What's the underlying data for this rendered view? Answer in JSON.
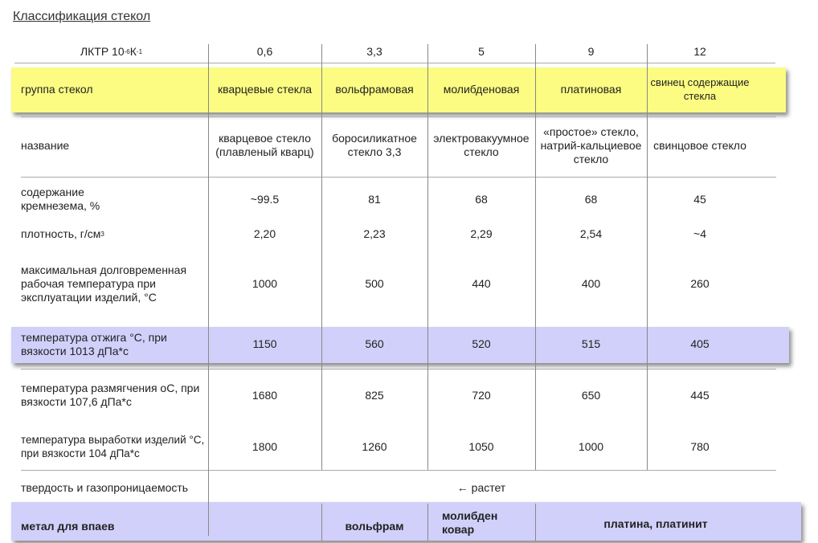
{
  "title": "Классификация стекол",
  "header": {
    "label": "ЛКТР 10",
    "exp1": "-6",
    "unit": " К",
    "exp2": "-1",
    "values": [
      "0,6",
      "3,3",
      "5",
      "9",
      "12"
    ]
  },
  "group": {
    "label": "группа стекол",
    "values": [
      "кварцевые стекла",
      "вольфрамовая",
      "молибденовая",
      "платиновая",
      "свинец содержащие стекла"
    ],
    "color": "#fcfc82"
  },
  "name": {
    "label": "название",
    "values": [
      "кварцевое стекло (плавленый кварц)",
      "боросиликатное стекло 3,3",
      "электровакуумное стекло",
      "«простое» стекло, натрий-кальциевое стекло",
      "свинцовое стекло"
    ]
  },
  "silica": {
    "label": "содержание кремнезема, %",
    "values": [
      "~99.5",
      "81",
      "68",
      "68",
      "45"
    ]
  },
  "density": {
    "label": "плотность, г/см",
    "exp": "3",
    "values": [
      "2,20",
      "2,23",
      "2,29",
      "2,54",
      "~4"
    ]
  },
  "maxtemp": {
    "label": "максимальная долговременная рабочая температура при эксплуатации изделий, °C",
    "values": [
      "1000",
      "500",
      "440",
      "400",
      "260"
    ]
  },
  "anneal": {
    "label": "температура отжига °C, при вязкости 1013 дПа*с",
    "values": [
      "1150",
      "560",
      "520",
      "515",
      "405"
    ],
    "color": "#d1d0fb"
  },
  "soften": {
    "label": "температура размягчения оС, при вязкости 107,6 дПа*с",
    "values": [
      "1680",
      "825",
      "720",
      "650",
      "445"
    ]
  },
  "working": {
    "label": "температура выработки изделий °C, при вязкости 104 дПа*с",
    "values": [
      "1800",
      "1260",
      "1050",
      "1000",
      "780"
    ]
  },
  "hardness": {
    "label": "твердость и газопроницаемость",
    "value": "← растет"
  },
  "metal": {
    "label": "метал для впаев",
    "values": [
      "",
      "вольфрам",
      "молибден ковар",
      "платина, платинит"
    ]
  }
}
